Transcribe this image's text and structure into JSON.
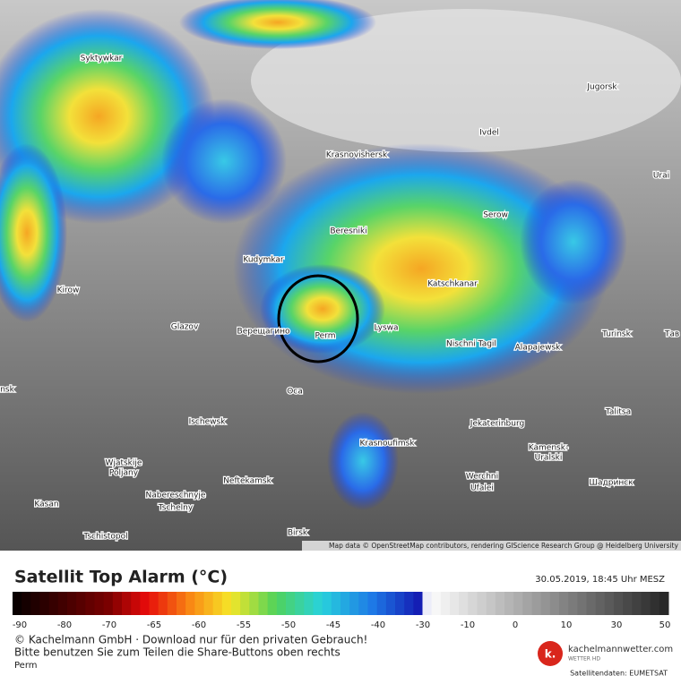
{
  "header": {
    "title": "Satellit Top Alarm (°C)",
    "timestamp": "30.05.2019, 18:45 Uhr MESZ"
  },
  "map": {
    "attribution": "Map data © OpenStreetMap contributors, rendering GIScience Research Group @ Heidelberg University",
    "cities": [
      "Syktywkar",
      "Jugorsk",
      "Ivdel",
      "Krasnovishersk",
      "Urai",
      "Serow",
      "Beresniki",
      "Kudymkar",
      "Kirow",
      "Katschkanar",
      "Glazov",
      "Верещагино",
      "Perm",
      "Lyswa",
      "Turinsk",
      "Тав",
      "Nischni Tagil",
      "Alapajewsk",
      "nsk",
      "Oca",
      "Talitsa",
      "Ischewsk",
      "Jekaterinburg",
      "Krasnoufimsk",
      "Kamensk-",
      "Uralski",
      "Wjatskije",
      "Poljany",
      "Neftekamsk",
      "Werchni",
      "Ufalei",
      "Шадринск",
      "Nabereschnyje",
      "Tschelny",
      "Kasan",
      "Tschistopol",
      "Birsk"
    ]
  },
  "legend": {
    "ticks": [
      "-90",
      "-80",
      "-70",
      "-65",
      "-60",
      "-55",
      "-50",
      "-45",
      "-40",
      "-30",
      "-10",
      "0",
      "10",
      "30",
      "50"
    ]
  },
  "footer": {
    "copyright": "© Kachelmann GmbH · Download nur für den privaten Gebrauch!",
    "share": "Bitte benutzen Sie zum Teilen die Share-Buttons oben rechts",
    "location": "Perm",
    "brand": "kachelmannwetter.com",
    "brand_sub": "WETTER HD",
    "logo": "k.",
    "source": "Satellitendaten: EUMETSAT"
  }
}
